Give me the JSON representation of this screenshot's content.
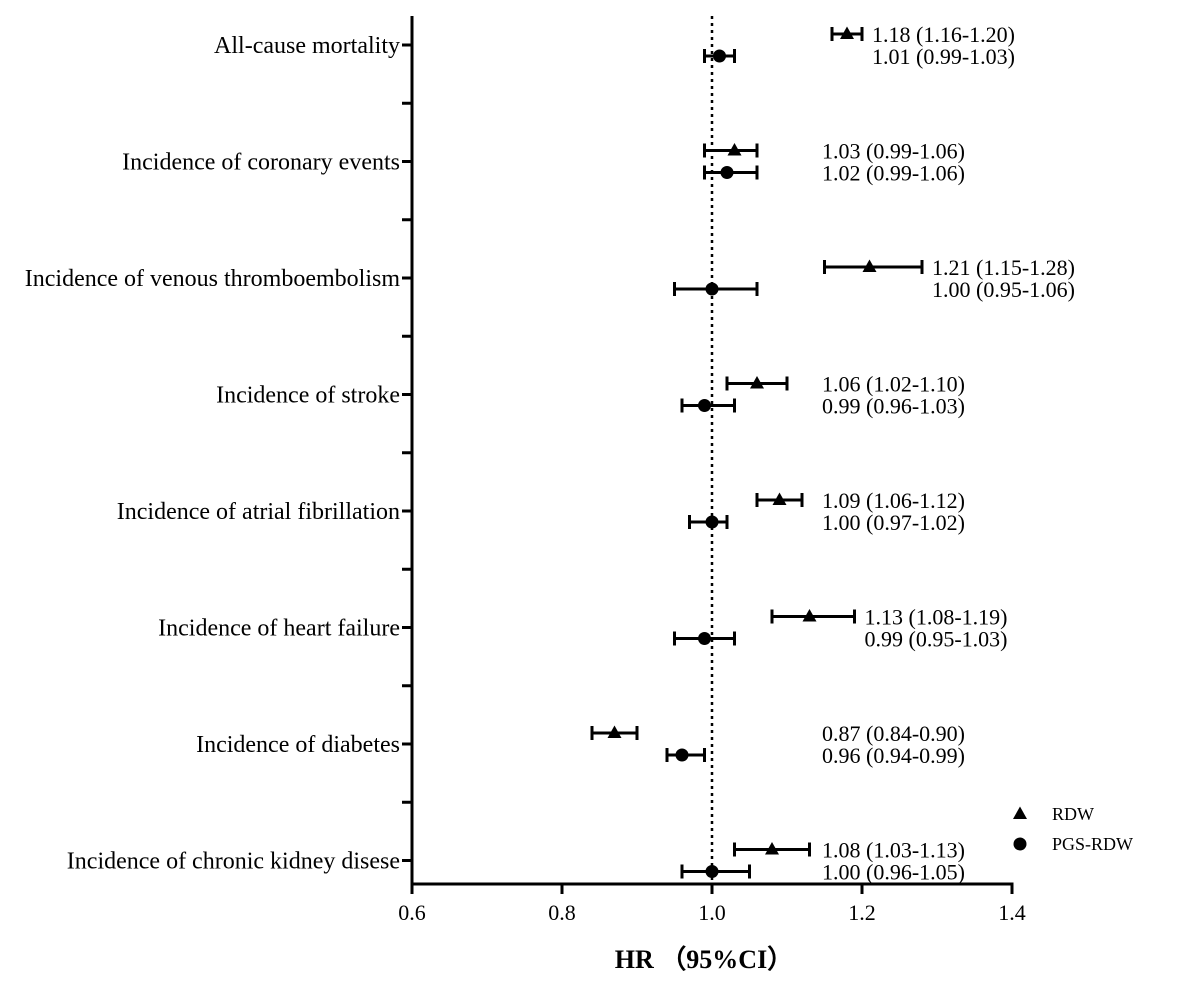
{
  "chart_data": {
    "type": "forest",
    "xlabel": "HR （95%CI）",
    "xlim": [
      0.6,
      1.4
    ],
    "xticks": [
      "0.6",
      "0.8",
      "1.0",
      "1.2",
      "1.4"
    ],
    "reference_line": 1.0,
    "categories": [
      "All-cause mortality",
      "Incidence of coronary events",
      "Incidence of venous thromboembolism",
      "Incidence of stroke",
      "Incidence of atrial fibrillation",
      "Incidence of heart failure",
      "Incidence of diabetes",
      "Incidence of chronic kidney disese"
    ],
    "legend_position": "bottom-right",
    "series": [
      {
        "name": "RDW",
        "marker": "triangle",
        "hr": [
          1.18,
          1.03,
          1.21,
          1.06,
          1.09,
          1.13,
          0.87,
          1.08
        ],
        "lower": [
          1.16,
          0.99,
          1.15,
          1.02,
          1.06,
          1.08,
          0.84,
          1.03
        ],
        "upper": [
          1.2,
          1.06,
          1.28,
          1.1,
          1.12,
          1.19,
          0.9,
          1.13
        ],
        "labels": [
          "1.18 (1.16-1.20)",
          "1.03 (0.99-1.06)",
          "1.21 (1.15-1.28)",
          "1.06 (1.02-1.10)",
          "1.09 (1.06-1.12)",
          "1.13 (1.08-1.19)",
          "0.87 (0.84-0.90)",
          "1.08 (1.03-1.13)"
        ]
      },
      {
        "name": "PGS-RDW",
        "marker": "circle",
        "hr": [
          1.01,
          1.02,
          1.0,
          0.99,
          1.0,
          0.99,
          0.96,
          1.0
        ],
        "lower": [
          0.99,
          0.99,
          0.95,
          0.96,
          0.97,
          0.95,
          0.94,
          0.96
        ],
        "upper": [
          1.03,
          1.06,
          1.06,
          1.03,
          1.02,
          1.03,
          0.99,
          1.05
        ],
        "labels": [
          "1.01 (0.99-1.03)",
          "1.02 (0.99-1.06)",
          "1.00 (0.95-1.06)",
          "0.99 (0.96-1.03)",
          "1.00 (0.97-1.02)",
          "0.99 (0.95-1.03)",
          "0.96 (0.94-0.99)",
          "1.00 (0.96-1.05)"
        ]
      }
    ]
  }
}
